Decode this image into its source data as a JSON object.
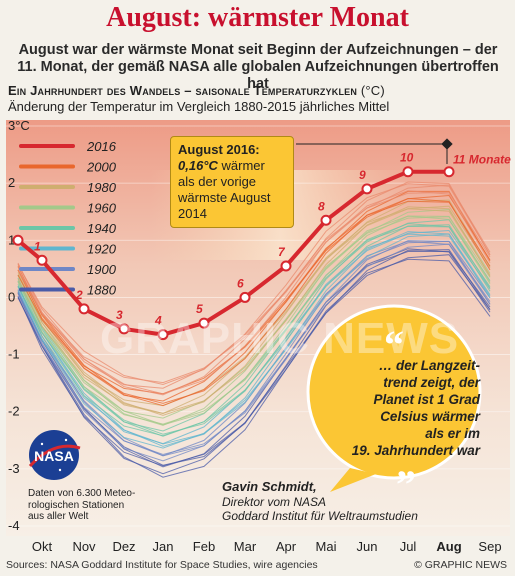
{
  "headline": "August: wärmster Monat",
  "subhead_line1": "August war der wärmste Monat seit Beginn der Aufzeichnungen – der",
  "subhead_line2": "11. Monat, der gemäß NASA alle globalen Aufzeichnungen übertroffen hat",
  "section_title": "Ein Jahrhundert des Wandels – saisonale Temperaturzyklen",
  "section_unit": "(°C)",
  "section_subtitle": "Änderung der Temperatur im Vergleich 1880-2015 jährliches Mittel",
  "callout": {
    "title": "August 2016:",
    "delta": "0,16°C",
    "text1": " wärmer",
    "text2": "als der vorige",
    "text3": "wärmste August",
    "text4": "2014"
  },
  "quote": {
    "line1": "… der Langzeit-",
    "line2": "trend zeigt, der",
    "line3": "Planet ist 1 Grad",
    "line4": "Celsius wärmer",
    "line5": "als er im",
    "line6": "19. Jahrhundert war",
    "open_mark": "“",
    "close_mark": "”"
  },
  "author": {
    "name": "Gavin Schmidt,",
    "role1": "Direktor vom NASA",
    "role2": "Goddard Institut für Weltraumstudien"
  },
  "nasa": {
    "logo_text": "NASA",
    "note1": "Daten von 6.300 Meteo-",
    "note2": "rologischen Stationen",
    "note3": "aus aller Welt"
  },
  "watermark": "GRAPHIC NEWS",
  "footer": {
    "source": "Sources: NASA Goddard Institute for Space Studies, wire agencies",
    "copyright": "© GRAPHIC NEWS"
  },
  "colors": {
    "red": "#d7282f",
    "accent_yellow": "#fbc634",
    "sky_top": "#eeb7a3",
    "sky_bottom": "#f6ecdf"
  },
  "chart_data": {
    "type": "line",
    "ylabel": "°C",
    "ylim": [
      -4,
      3
    ],
    "yticks": [
      3,
      2,
      1,
      0,
      -1,
      -2,
      -3,
      -4
    ],
    "ytick_labels": [
      "3°C",
      "2",
      "1",
      "0",
      "-1",
      "-2",
      "-3",
      "-4"
    ],
    "categories": [
      "Okt",
      "Nov",
      "Dez",
      "Jan",
      "Feb",
      "Mar",
      "Apr",
      "Mai",
      "Jun",
      "Jul",
      "Aug",
      "Sep"
    ],
    "highlight_category": "Aug",
    "legend": [
      {
        "label": "2016",
        "color": "#d7282f"
      },
      {
        "label": "2000",
        "color": "#e9672d"
      },
      {
        "label": "1980",
        "color": "#cfae6f"
      },
      {
        "label": "1960",
        "color": "#a3c98a"
      },
      {
        "label": "1940",
        "color": "#6cc6a7"
      },
      {
        "label": "1920",
        "color": "#5fb6cf"
      },
      {
        "label": "1900",
        "color": "#6f87c6"
      },
      {
        "label": "1880",
        "color": "#4a5ba8"
      }
    ],
    "series": [
      {
        "name": "2016",
        "x": [
          "-",
          "Okt",
          "Nov",
          "Dez",
          "Jan",
          "Feb",
          "Mar",
          "Apr",
          "Mai",
          "Jun",
          "Jul",
          "Aug"
        ],
        "values": [
          1.0,
          0.65,
          -0.2,
          -0.55,
          -0.65,
          -0.45,
          0.0,
          0.55,
          1.35,
          1.9,
          2.2,
          2.2
        ],
        "labels": [
          "",
          "1",
          "2",
          "3",
          "4",
          "5",
          "6",
          "7",
          "8",
          "9",
          "10",
          "11"
        ],
        "last_label": "11 Monate"
      }
    ],
    "historical_envelope": {
      "categories": [
        "-",
        "Okt",
        "Nov",
        "Dez",
        "Jan",
        "Feb",
        "Mar",
        "Apr",
        "Mai",
        "Jun",
        "Jul",
        "Aug",
        "Sep"
      ],
      "upper": [
        0.6,
        -0.2,
        -1.0,
        -1.4,
        -1.5,
        -1.2,
        -0.6,
        0.2,
        1.1,
        1.7,
        2.0,
        2.0,
        0.8
      ],
      "lower": [
        0.0,
        -0.9,
        -2.1,
        -2.8,
        -3.1,
        -2.9,
        -2.3,
        -1.3,
        -0.3,
        0.4,
        0.7,
        0.7,
        -0.3
      ]
    }
  }
}
